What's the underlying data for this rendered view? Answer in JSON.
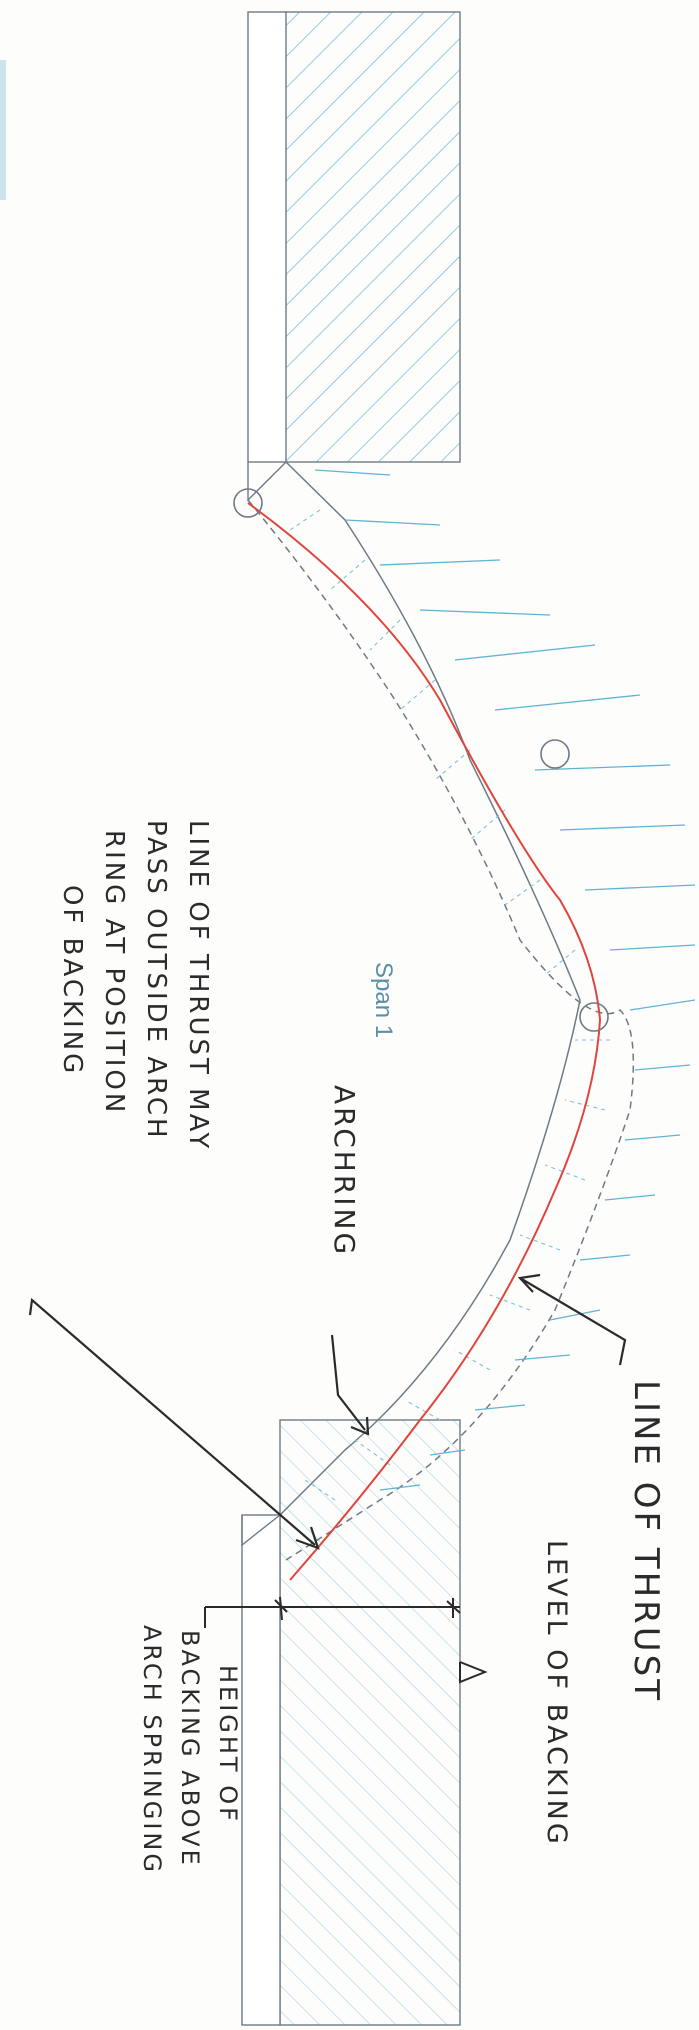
{
  "diagram": {
    "labels": {
      "span": "Span 1",
      "line_of_thrust": "LINE OF THRUST",
      "level_of_backing": "LEVEL OF BACKING",
      "arch_ring": "ARCHRING",
      "note_line1": "LINE OF THRUST MAY",
      "note_line2": "PASS OUTSIDE ARCH",
      "note_line3": "RING AT POSITION",
      "note_line4": "OF BACKING",
      "height_line1": "HEIGHT OF",
      "height_line2": "BACKING ABOVE",
      "height_line3": "ARCH SPRINGING"
    },
    "colors": {
      "outline": "#6e7a84",
      "hatch": "#5fb3d3",
      "thrust_line": "#e0443c",
      "annotation": "#2b2b2b",
      "span_label": "#5b8ea8"
    }
  }
}
